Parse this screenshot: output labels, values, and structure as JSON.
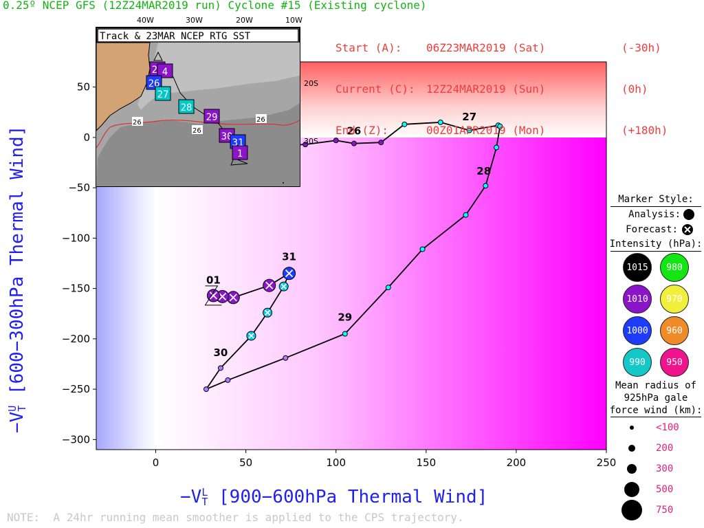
{
  "header": {
    "title": "0.25º NCEP GFS (12Z24MAR2019 run) Cyclone #15 (Existing cyclone)",
    "rows": [
      {
        "label": "Start (A):",
        "date": "06Z23MAR2019 (Sat)",
        "rel": "(-30h)"
      },
      {
        "label": "Current (C):",
        "date": "12Z24MAR2019 (Sun)",
        "rel": "(0h)"
      },
      {
        "label": "End (Z):",
        "date": "00Z01APR2019 (Mon)",
        "rel": "(+180h)"
      }
    ]
  },
  "note": "NOTE:  A 24hr running mean smoother is applied to the CPS trajectory.",
  "colors": {
    "title": "#13b313",
    "info": "#f03c3c",
    "axis_label": "#2020f0",
    "legend_size_label": "#e0207a"
  },
  "chart_data": {
    "type": "line",
    "xlabel": "-Vt L [900-600hPa Thermal Wind]",
    "xlabel_main": "−V",
    "xlabel_sub": "T",
    "xlabel_sup": "L",
    "xlabel_rest": " [900−600hPa Thermal Wind]",
    "ylabel_main": "−V",
    "ylabel_sub": "T",
    "ylabel_sup": "U",
    "ylabel_rest": " [600−300hPa Thermal Wind]",
    "xlim": [
      -33,
      250
    ],
    "ylim": [
      -310,
      75
    ],
    "xticks": [
      0,
      50,
      100,
      150,
      200,
      250
    ],
    "yticks": [
      50,
      0,
      -50,
      -100,
      -150,
      -200,
      -250,
      -300
    ],
    "tick_labels_x": [
      "0",
      "50",
      "100",
      "150",
      "200",
      "250"
    ],
    "tick_labels_y": [
      "50",
      "0",
      "−50",
      "−100",
      "−150",
      "−200",
      "−250",
      "−300"
    ],
    "series": [
      {
        "points": [
          {
            "x": 42,
            "y": -4,
            "kind": "analysis",
            "r": "small"
          },
          {
            "x": 56,
            "y": -7,
            "kind": "analysis",
            "r": "small"
          },
          {
            "x": 69,
            "y": -8,
            "kind": "analysis",
            "r": "small"
          },
          {
            "x": 83,
            "y": -7,
            "kind": "analysis",
            "r": "small"
          },
          {
            "x": 100,
            "y": -3,
            "kind": "analysis",
            "r": "small"
          },
          {
            "x": 110,
            "y": -6,
            "kind": "analysis",
            "r": "small"
          },
          {
            "x": 125,
            "y": -5,
            "kind": "analysis",
            "r": "small"
          },
          {
            "x": 138,
            "y": 13,
            "kind": "analysis",
            "r": "small"
          },
          {
            "x": 158,
            "y": 15,
            "kind": "analysis",
            "r": "small"
          },
          {
            "x": 174,
            "y": 7,
            "kind": "forecast",
            "r": "small"
          },
          {
            "x": 190,
            "y": 12,
            "kind": "forecast",
            "r": "small"
          },
          {
            "x": 191,
            "y": 11,
            "kind": "forecast",
            "r": "small"
          },
          {
            "x": 189,
            "y": -10,
            "kind": "forecast",
            "r": "small"
          },
          {
            "x": 183,
            "y": -48,
            "kind": "forecast",
            "r": "small"
          },
          {
            "x": 172,
            "y": -77,
            "kind": "forecast",
            "r": "small"
          },
          {
            "x": 148,
            "y": -111,
            "kind": "forecast",
            "r": "small"
          },
          {
            "x": 129,
            "y": -149,
            "kind": "forecast",
            "r": "small"
          },
          {
            "x": 105,
            "y": -195,
            "kind": "forecast",
            "r": "small"
          },
          {
            "x": 72,
            "y": -219,
            "kind": "forecast",
            "r": "small"
          },
          {
            "x": 40,
            "y": -241,
            "kind": "forecast",
            "r": "small"
          },
          {
            "x": 28,
            "y": -250,
            "kind": "forecast",
            "r": "small"
          },
          {
            "x": 36,
            "y": -229,
            "kind": "forecast",
            "r": "small"
          },
          {
            "x": 53,
            "y": -197,
            "kind": "forecast",
            "r": "medium"
          },
          {
            "x": 62,
            "y": -174,
            "kind": "forecast",
            "r": "medium"
          },
          {
            "x": 71,
            "y": -148,
            "kind": "forecast",
            "r": "medium"
          },
          {
            "x": 74,
            "y": -135,
            "kind": "forecast",
            "r": "large"
          },
          {
            "x": 63,
            "y": -147,
            "kind": "forecast",
            "r": "large"
          },
          {
            "x": 43,
            "y": -159,
            "kind": "forecast",
            "r": "large"
          },
          {
            "x": 37,
            "y": -158,
            "kind": "forecast",
            "r": "large"
          },
          {
            "x": 32,
            "y": -157,
            "kind": "forecast",
            "r": "large"
          }
        ]
      }
    ],
    "day_labels": [
      {
        "text": "26",
        "x": 110,
        "y": 3
      },
      {
        "text": "27",
        "x": 174,
        "y": 17
      },
      {
        "text": "28",
        "x": 182,
        "y": -37
      },
      {
        "text": "29",
        "x": 105,
        "y": -182
      },
      {
        "text": "30",
        "x": 36,
        "y": -217
      },
      {
        "text": "31",
        "x": 74,
        "y": -122
      },
      {
        "text": "01",
        "x": 32,
        "y": -145
      }
    ],
    "point_colors": {
      "small": "#00ffff",
      "medium": "#00c8e6",
      "large": "#1e3cff"
    }
  },
  "inset": {
    "title": "Track & 23MAR NCEP RTG SST",
    "lon_labels": [
      "40W",
      "30W",
      "20W",
      "10W"
    ],
    "lat_labels": [
      "20S",
      "30S"
    ],
    "sst_labels": [
      "26",
      "26",
      "26"
    ],
    "markers": [
      {
        "text": "25",
        "color": "#8c14c8"
      },
      {
        "text": "4",
        "color": "#8c14c8"
      },
      {
        "text": "26",
        "color": "#1e3cff"
      },
      {
        "text": "27",
        "color": "#00c8c8"
      },
      {
        "text": "28",
        "color": "#00c8c8"
      },
      {
        "text": "29",
        "color": "#8c14c8"
      },
      {
        "text": "30",
        "color": "#8c14c8"
      },
      {
        "text": "31",
        "color": "#1e3cff"
      },
      {
        "text": "1",
        "color": "#8c14c8"
      }
    ]
  },
  "legend": {
    "marker_style": "Marker Style:",
    "analysis": "Analysis:",
    "forecast": "Forecast:",
    "intensity_title": "Intensity (hPa):",
    "intensity": [
      {
        "label": "1015",
        "color": "#000000"
      },
      {
        "label": "980",
        "color": "#14e614"
      },
      {
        "label": "1010",
        "color": "#8c14c8"
      },
      {
        "label": "970",
        "color": "#f0f03c"
      },
      {
        "label": "1000",
        "color": "#1e3cff"
      },
      {
        "label": "960",
        "color": "#f08c28"
      },
      {
        "label": "990",
        "color": "#14c8c8"
      },
      {
        "label": "950",
        "color": "#f0148c"
      }
    ],
    "radius_title_1": "Mean radius of",
    "radius_title_2": "925hPa gale",
    "radius_title_3": "force wind (km):",
    "sizes": [
      {
        "label": "<100",
        "d": 6
      },
      {
        "label": "200",
        "d": 10
      },
      {
        "label": "300",
        "d": 14
      },
      {
        "label": "500",
        "d": 22
      },
      {
        "label": "750",
        "d": 30
      }
    ]
  }
}
